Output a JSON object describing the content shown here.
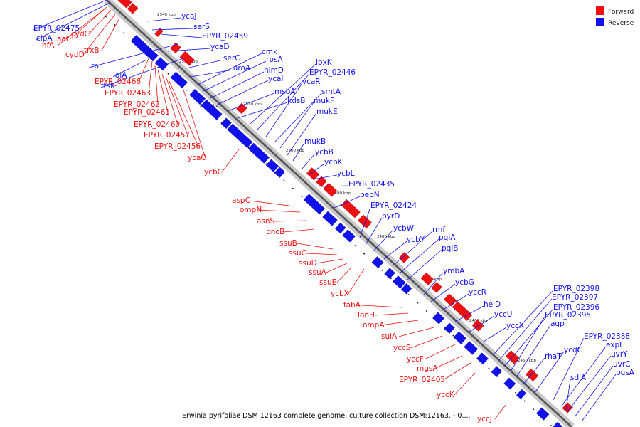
{
  "legend": {
    "forward_label": "Forward",
    "reverse_label": "Reverse",
    "forward_color": "#ee1111",
    "reverse_color": "#1111ee"
  },
  "caption": "Erwinia pyrifoliae DSM 12163 complete genome, culture collection DSM:12163. - 0....",
  "ticks": [
    "2540 kbp",
    "2530 kbp",
    "2520 kbp",
    "2510 kbp",
    "2500 kbp",
    "2490 kbp",
    "2480 kbp",
    "2470 kbp",
    "2460 kbp",
    "2450 kbp"
  ],
  "reverse_labels": [
    "EPYR_02475",
    "clpA",
    "ycaJ",
    "serS",
    "EPYR_02459",
    "ycaD",
    "lrp",
    "ftsK",
    "serC",
    "aroA",
    "cmk",
    "rpsA",
    "himD",
    "ycaI",
    "lolA",
    "msbA",
    "kdsB",
    "lpxK",
    "EPYR_02446",
    "ycaR",
    "smtA",
    "mukF",
    "mukE",
    "mukB",
    "ycbB",
    "ycbK",
    "ycbL",
    "EPYR_02435",
    "pepN",
    "EPYR_02424",
    "pyrD",
    "ycbW",
    "ycbY",
    "rmf",
    "pqiA",
    "pqiB",
    "ymbA",
    "ycbG",
    "yccR",
    "helD",
    "yccU",
    "yccX",
    "EPYR_02398",
    "EPYR_02397",
    "EPYR_02396",
    "EPYR_02395",
    "agp",
    "rhaT",
    "ycdC",
    "EPYR_02388",
    "expI",
    "uvrY",
    "uvrC",
    "sdiA",
    "pgsA"
  ],
  "forward_labels": [
    "infA",
    "aat",
    "cydC",
    "cydD",
    "trxB",
    "EPYR_02466",
    "EPYR_02463",
    "EPYR_02462",
    "EPYR_02461",
    "EPYR_02460",
    "EPYR_02457",
    "EPYR_02456",
    "ycaO",
    "ycbC",
    "aspC",
    "ompN",
    "asnS",
    "pncB",
    "ssuB",
    "ssuC",
    "ssuD",
    "ssuA",
    "ssuE",
    "ycbX",
    "fabA",
    "lonH",
    "ompA",
    "sulA",
    "yccS",
    "yccF",
    "mgsA",
    "EPYR_02405",
    "yccK",
    "yccJ"
  ]
}
